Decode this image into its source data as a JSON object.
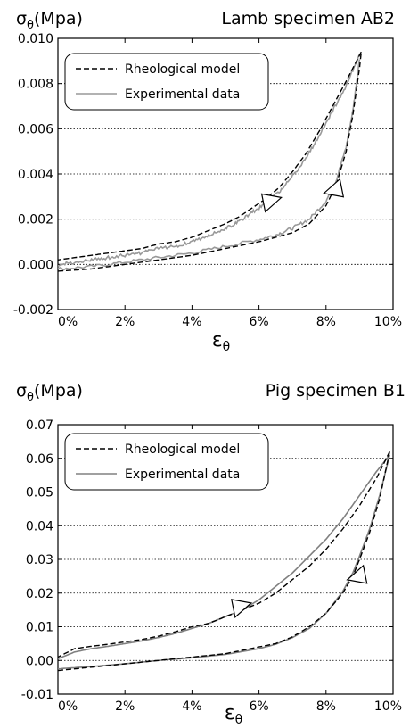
{
  "chart_data": [
    {
      "type": "line",
      "title": "Lamb specimen AB2",
      "ylabel": "σθ(Mpa)",
      "xlabel": "εθ",
      "xlim": [
        0,
        10
      ],
      "ylim": [
        -0.002,
        0.01
      ],
      "x_ticks": [
        0,
        2,
        4,
        6,
        8,
        10
      ],
      "x_tick_labels": [
        "0%",
        "2%",
        "4%",
        "6%",
        "8%",
        "10%"
      ],
      "y_ticks": [
        -0.002,
        0.0,
        0.002,
        0.004,
        0.006,
        0.008,
        0.01
      ],
      "y_tick_labels": [
        "-0.002",
        "0.000",
        "0.002",
        "0.004",
        "0.006",
        "0.008",
        "0.010"
      ],
      "grid": "horizontal dotted",
      "legend_placement": "top-left",
      "series": [
        {
          "name": "Rheological model",
          "style": "dashed",
          "color": "#000000",
          "branches": [
            {
              "x": [
                9.05,
                8.6,
                8.2,
                7.8,
                7.4,
                7.0,
                6.6,
                6.2,
                5.8,
                5.4,
                5.0,
                4.5,
                4.0,
                3.5,
                3.0,
                2.5,
                2.0,
                1.5,
                1.0,
                0.5,
                0.0
              ],
              "y": [
                0.0094,
                0.0081,
                0.007,
                0.0059,
                0.0049,
                0.0041,
                0.0034,
                0.0029,
                0.0025,
                0.0021,
                0.0018,
                0.0015,
                0.0012,
                0.001,
                0.0009,
                0.0007,
                0.0006,
                0.0005,
                0.0004,
                0.0003,
                0.0002
              ]
            },
            {
              "x": [
                0.0,
                1.0,
                2.0,
                3.0,
                4.0,
                5.0,
                6.0,
                6.5,
                7.0,
                7.5,
                8.0,
                8.3,
                8.6,
                8.8,
                9.0,
                9.05
              ],
              "y": [
                -0.0003,
                -0.0002,
                0.0,
                0.0002,
                0.0004,
                0.0007,
                0.001,
                0.0012,
                0.0014,
                0.0018,
                0.0026,
                0.0035,
                0.005,
                0.0066,
                0.0087,
                0.0094
              ]
            }
          ]
        },
        {
          "name": "Experimental data",
          "style": "solid noisy",
          "color": "#999999",
          "branches": [
            {
              "x": [
                9.0,
                8.6,
                8.2,
                7.8,
                7.4,
                7.0,
                6.6,
                6.2,
                5.8,
                5.4,
                5.0,
                4.5,
                4.0,
                3.5,
                3.0,
                2.5,
                2.0,
                1.5,
                1.0,
                0.5,
                0.0
              ],
              "y": [
                0.0093,
                0.0079,
                0.0068,
                0.0057,
                0.0047,
                0.0039,
                0.0032,
                0.0027,
                0.0023,
                0.0019,
                0.0016,
                0.0013,
                0.001,
                0.0008,
                0.0007,
                0.0005,
                0.0004,
                0.0003,
                0.0002,
                0.0001,
                0.0
              ]
            },
            {
              "x": [
                0.0,
                1.0,
                2.0,
                3.0,
                4.0,
                5.0,
                6.0,
                6.5,
                7.0,
                7.5,
                8.0,
                8.3,
                8.6,
                8.8,
                9.0
              ],
              "y": [
                -0.0002,
                -0.0001,
                0.0001,
                0.0003,
                0.0005,
                0.0008,
                0.0011,
                0.0013,
                0.0016,
                0.002,
                0.0028,
                0.0037,
                0.0052,
                0.0068,
                0.0091
              ]
            }
          ]
        }
      ],
      "annotations": [
        {
          "type": "arrow",
          "x": 6.4,
          "y": 0.0028,
          "direction": "down-left"
        },
        {
          "type": "arrow",
          "x": 8.2,
          "y": 0.0033,
          "direction": "up-right"
        }
      ]
    },
    {
      "type": "line",
      "title": "Pig specimen B1",
      "ylabel": "σθ(Mpa)",
      "xlabel": "εθ",
      "xlim": [
        0,
        10
      ],
      "ylim": [
        -0.01,
        0.07
      ],
      "x_ticks": [
        0,
        2,
        4,
        6,
        8,
        10
      ],
      "x_tick_labels": [
        "0%",
        "2%",
        "4%",
        "6%",
        "8%",
        "10%"
      ],
      "y_ticks": [
        -0.01,
        0.0,
        0.01,
        0.02,
        0.03,
        0.04,
        0.05,
        0.06,
        0.07
      ],
      "y_tick_labels": [
        "-0.01",
        "0.00",
        "0.01",
        "0.02",
        "0.03",
        "0.04",
        "0.05",
        "0.06",
        "0.07"
      ],
      "grid": "horizontal dotted",
      "legend_placement": "top-left",
      "series": [
        {
          "name": "Rheological model",
          "style": "dashed",
          "color": "#000000",
          "branches": [
            {
              "x": [
                9.9,
                9.5,
                9.0,
                8.5,
                8.0,
                7.5,
                7.0,
                6.5,
                6.0,
                5.5,
                5.0,
                4.5,
                4.0,
                3.5,
                3.0,
                2.5,
                2.0,
                1.5,
                1.0,
                0.5,
                0.0
              ],
              "y": [
                0.062,
                0.054,
                0.046,
                0.039,
                0.033,
                0.028,
                0.024,
                0.02,
                0.017,
                0.015,
                0.013,
                0.011,
                0.01,
                0.0085,
                0.0072,
                0.0062,
                0.0055,
                0.0048,
                0.0042,
                0.0035,
                0.001
              ]
            },
            {
              "x": [
                0.0,
                1.0,
                2.0,
                3.0,
                4.0,
                5.0,
                6.0,
                6.5,
                7.0,
                7.5,
                8.0,
                8.5,
                8.8,
                9.0,
                9.3,
                9.6,
                9.9
              ],
              "y": [
                -0.003,
                -0.002,
                -0.001,
                0.0,
                0.001,
                0.002,
                0.004,
                0.005,
                0.007,
                0.01,
                0.014,
                0.02,
                0.025,
                0.03,
                0.038,
                0.048,
                0.062
              ]
            }
          ]
        },
        {
          "name": "Experimental data",
          "style": "solid",
          "color": "#808080",
          "branches": [
            {
              "x": [
                9.9,
                9.5,
                9.0,
                8.5,
                8.0,
                7.5,
                7.0,
                6.5,
                6.0,
                5.5,
                5.0,
                4.5,
                4.0,
                3.5,
                3.0,
                2.5,
                2.0,
                1.5,
                1.0,
                0.5,
                0.0
              ],
              "y": [
                0.061,
                0.056,
                0.049,
                0.042,
                0.036,
                0.031,
                0.026,
                0.022,
                0.018,
                0.015,
                0.013,
                0.011,
                0.0095,
                0.008,
                0.0068,
                0.0058,
                0.005,
                0.0042,
                0.0035,
                0.0025,
                0.0005
              ]
            },
            {
              "x": [
                0.0,
                1.0,
                2.0,
                3.0,
                4.0,
                5.0,
                6.0,
                6.5,
                7.0,
                7.5,
                8.0,
                8.5,
                8.8,
                9.0,
                9.3,
                9.6,
                9.9
              ],
              "y": [
                -0.0025,
                -0.0018,
                -0.001,
                0.0,
                0.0008,
                0.0018,
                0.0035,
                0.0048,
                0.0068,
                0.0095,
                0.014,
                0.0205,
                0.026,
                0.031,
                0.039,
                0.049,
                0.061
              ]
            }
          ]
        }
      ],
      "annotations": [
        {
          "type": "arrow",
          "x": 5.5,
          "y": 0.016,
          "direction": "down-left"
        },
        {
          "type": "arrow",
          "x": 8.9,
          "y": 0.025,
          "direction": "up-right"
        }
      ]
    }
  ]
}
